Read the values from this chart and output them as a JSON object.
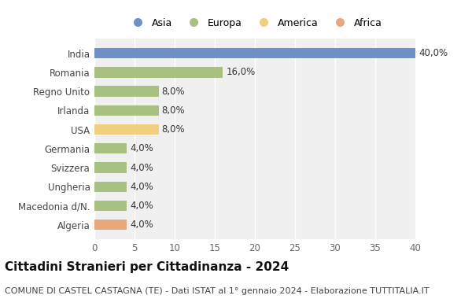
{
  "categories": [
    "Algeria",
    "Macedonia d/N.",
    "Ungheria",
    "Svizzera",
    "Germania",
    "USA",
    "Irlanda",
    "Regno Unito",
    "Romania",
    "India"
  ],
  "values": [
    4.0,
    4.0,
    4.0,
    4.0,
    4.0,
    8.0,
    8.0,
    8.0,
    16.0,
    40.0
  ],
  "labels": [
    "4,0%",
    "4,0%",
    "4,0%",
    "4,0%",
    "4,0%",
    "8,0%",
    "8,0%",
    "8,0%",
    "16,0%",
    "40,0%"
  ],
  "colors": [
    "#e8a87c",
    "#a8c080",
    "#a8c080",
    "#a8c080",
    "#a8c080",
    "#f0d080",
    "#a8c080",
    "#a8c080",
    "#a8c080",
    "#7090c8"
  ],
  "legend_items": [
    {
      "label": "Asia",
      "color": "#7090c8"
    },
    {
      "label": "Europa",
      "color": "#a8c080"
    },
    {
      "label": "America",
      "color": "#f0d080"
    },
    {
      "label": "Africa",
      "color": "#e8a87c"
    }
  ],
  "title": "Cittadini Stranieri per Cittadinanza - 2024",
  "subtitle": "COMUNE DI CASTEL CASTAGNA (TE) - Dati ISTAT al 1° gennaio 2024 - Elaborazione TUTTITALIA.IT",
  "xlim": [
    0,
    40
  ],
  "xticks": [
    0,
    5,
    10,
    15,
    20,
    25,
    30,
    35,
    40
  ],
  "bg_color": "#ffffff",
  "plot_bg_color": "#f0f0f0",
  "grid_color": "#ffffff",
  "title_fontsize": 11,
  "subtitle_fontsize": 8,
  "label_fontsize": 8.5,
  "tick_fontsize": 8.5,
  "bar_height": 0.55
}
